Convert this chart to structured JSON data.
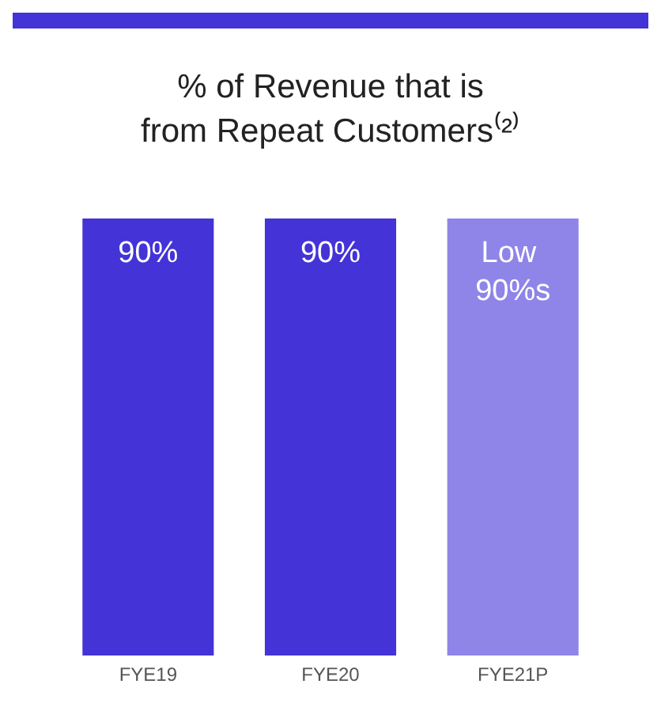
{
  "chart_data": {
    "type": "bar",
    "title": "% of Revenue that is\nfrom Repeat Customers⁽²⁾",
    "categories": [
      "FYE19",
      "FYE20",
      "FYE21P"
    ],
    "values": [
      90,
      90,
      90
    ],
    "colors": [
      "#4433d6",
      "#4433d6",
      "#8f84e8"
    ],
    "value_labels": [
      "90%",
      "90%",
      "Low 90%s"
    ]
  }
}
